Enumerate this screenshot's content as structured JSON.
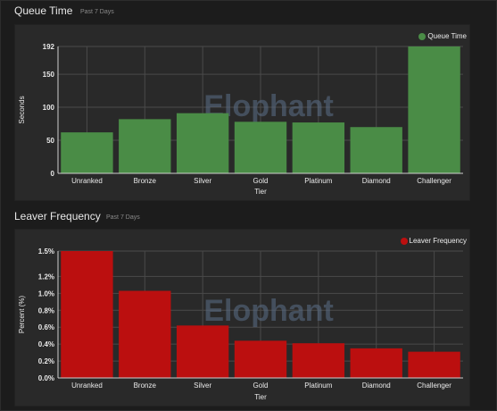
{
  "queue_time": {
    "title": "Queue Time",
    "subtitle": "Past 7 Days",
    "color": "#4a8c46",
    "watermark": "Elophant"
  },
  "leaver_frequency": {
    "title": "Leaver Frequency",
    "subtitle": "Past 7 Days",
    "color": "#bb0f0f",
    "watermark": "Elophant"
  },
  "chart_data": [
    {
      "type": "bar",
      "categories": [
        "Unranked",
        "Bronze",
        "Silver",
        "Gold",
        "Platinum",
        "Diamond",
        "Challenger"
      ],
      "series": [
        {
          "name": "Queue Time",
          "values": [
            62,
            82,
            91,
            78,
            77,
            70,
            192
          ]
        }
      ],
      "xlabel": "Tier",
      "ylabel": "Seconds",
      "ylim": [
        0,
        192
      ],
      "yticks": [
        0,
        50,
        100,
        150,
        192
      ],
      "ytick_labels": [
        "0",
        "50",
        "100",
        "150",
        "192"
      ],
      "grid": true,
      "legend": "top-right"
    },
    {
      "type": "bar",
      "categories": [
        "Unranked",
        "Bronze",
        "Silver",
        "Gold",
        "Platinum",
        "Diamond",
        "Challenger"
      ],
      "series": [
        {
          "name": "Leaver Frequency",
          "values": [
            1.5,
            1.03,
            0.62,
            0.44,
            0.41,
            0.35,
            0.31
          ]
        }
      ],
      "xlabel": "Tier",
      "ylabel": "Percent (%)",
      "ylim": [
        0,
        1.5
      ],
      "yticks": [
        0,
        0.2,
        0.4,
        0.6,
        0.8,
        1.0,
        1.2,
        1.5
      ],
      "ytick_labels": [
        "0.0%",
        "0.2%",
        "0.4%",
        "0.6%",
        "0.8%",
        "1.0%",
        "1.2%",
        "1.5%"
      ],
      "grid": true,
      "legend": "top-right"
    }
  ]
}
